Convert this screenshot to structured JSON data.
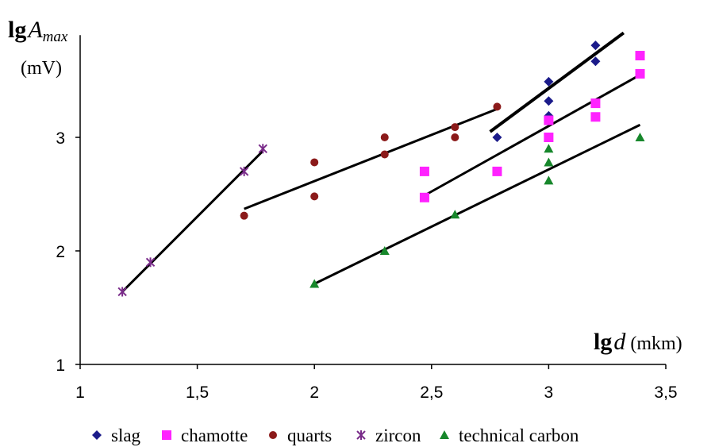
{
  "chart_data": {
    "type": "scatter",
    "ylabel": {
      "main": "lg",
      "italic": "A",
      "sub": "max",
      "unit": "(mV)"
    },
    "xlabel": {
      "main": "lg",
      "italic": "d",
      "unit": " (mkm)"
    },
    "xlim": [
      1,
      3.5
    ],
    "ylim": [
      1,
      3.9
    ],
    "xticks": [
      {
        "value": 1,
        "label": "1"
      },
      {
        "value": 1.5,
        "label": "1,5"
      },
      {
        "value": 2,
        "label": "2"
      },
      {
        "value": 2.5,
        "label": "2,5"
      },
      {
        "value": 3,
        "label": "3"
      },
      {
        "value": 3.5,
        "label": "3,5"
      }
    ],
    "yticks": [
      {
        "value": 1,
        "label": "1"
      },
      {
        "value": 2,
        "label": "2"
      },
      {
        "value": 3,
        "label": "3"
      }
    ],
    "grid": false,
    "legend_position": "bottom",
    "series": [
      {
        "name": "slag",
        "marker": "diamond",
        "color": "#1b1b8a",
        "points": [
          [
            2.78,
            3.0
          ],
          [
            3.0,
            3.49
          ],
          [
            3.0,
            3.32
          ],
          [
            3.0,
            3.19
          ],
          [
            3.2,
            3.81
          ],
          [
            3.2,
            3.67
          ]
        ],
        "trend": [
          [
            2.75,
            3.05
          ],
          [
            3.32,
            3.92
          ]
        ]
      },
      {
        "name": "chamotte",
        "marker": "square",
        "color": "#ff22ff",
        "points": [
          [
            2.47,
            2.7
          ],
          [
            2.47,
            2.47
          ],
          [
            2.78,
            2.7
          ],
          [
            3.0,
            3.15
          ],
          [
            3.0,
            3.0
          ],
          [
            3.2,
            3.3
          ],
          [
            3.2,
            3.18
          ],
          [
            3.39,
            3.72
          ],
          [
            3.39,
            3.56
          ]
        ],
        "trend": [
          [
            2.48,
            2.5
          ],
          [
            3.39,
            3.55
          ]
        ]
      },
      {
        "name": "quarts",
        "marker": "circle",
        "color": "#8b1a1a",
        "points": [
          [
            1.7,
            2.31
          ],
          [
            2.0,
            2.78
          ],
          [
            2.0,
            2.48
          ],
          [
            2.3,
            3.0
          ],
          [
            2.3,
            2.85
          ],
          [
            2.6,
            3.09
          ],
          [
            2.6,
            3.0
          ],
          [
            2.78,
            3.27
          ]
        ],
        "trend": [
          [
            1.7,
            2.37
          ],
          [
            2.78,
            3.25
          ]
        ]
      },
      {
        "name": "zircon",
        "marker": "star",
        "color": "#7a2c8a",
        "points": [
          [
            1.18,
            1.64
          ],
          [
            1.3,
            1.9
          ],
          [
            1.7,
            2.7
          ],
          [
            1.78,
            2.9
          ]
        ],
        "trend": [
          [
            1.18,
            1.64
          ],
          [
            1.78,
            2.88
          ]
        ]
      },
      {
        "name": "technical carbon",
        "marker": "triangle",
        "color": "#17872b",
        "points": [
          [
            2.0,
            1.71
          ],
          [
            2.3,
            2.0
          ],
          [
            2.6,
            2.32
          ],
          [
            3.0,
            2.9
          ],
          [
            3.0,
            2.78
          ],
          [
            3.0,
            2.62
          ],
          [
            3.39,
            3.0
          ]
        ],
        "trend": [
          [
            2.0,
            1.71
          ],
          [
            3.39,
            3.11
          ]
        ]
      }
    ]
  }
}
